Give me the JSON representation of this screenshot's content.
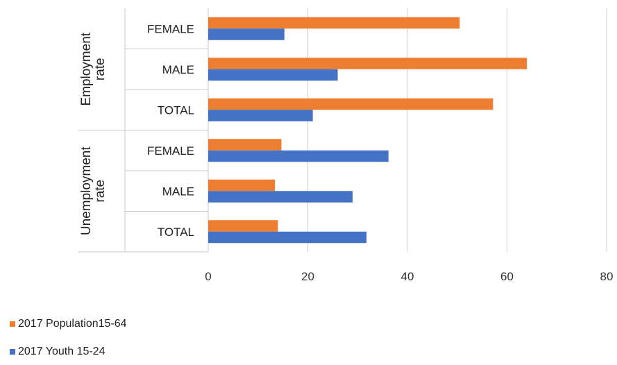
{
  "chart_data": {
    "type": "bar",
    "orientation": "horizontal",
    "groups": [
      {
        "label": "Employment rate",
        "categories": [
          "FEMALE",
          "MALE",
          "TOTAL"
        ]
      },
      {
        "label": "Unemployment rate",
        "categories": [
          "FEMALE",
          "MALE",
          "TOTAL"
        ]
      }
    ],
    "series": [
      {
        "name": "2017 Population15-64",
        "color": "#ED7D31",
        "values": [
          50.5,
          64,
          57.2,
          14.7,
          13.4,
          14
        ]
      },
      {
        "name": "2017 Youth 15-24",
        "color": "#4472C4",
        "values": [
          15.3,
          26,
          21,
          36.2,
          29,
          31.8
        ]
      }
    ],
    "xlim": [
      0,
      80
    ],
    "xticks": [
      "0",
      "20",
      "40",
      "60",
      "80"
    ],
    "grid": "vertical",
    "legend_position": "bottom-left"
  }
}
